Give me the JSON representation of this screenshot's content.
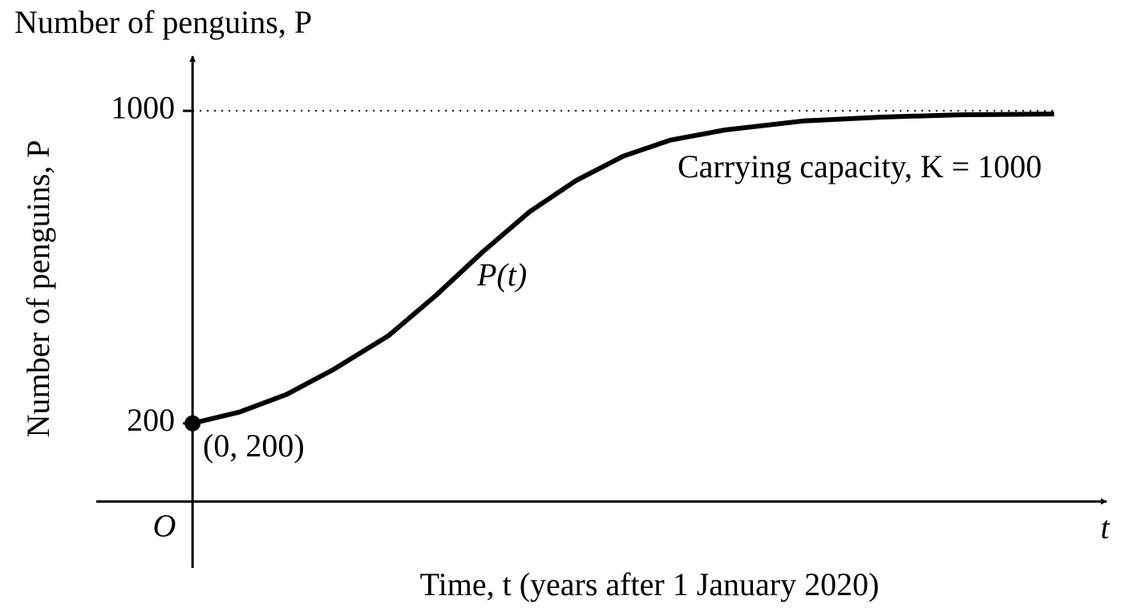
{
  "chart_data": {
    "type": "line",
    "title": "Number of penguins, P",
    "y_label": "Number of penguins, P",
    "x_label": "Time, t (years after 1 January 2020)",
    "origin_label": "O",
    "x_axis_symbol": "t",
    "annotations": {
      "start_point": "(0, 200)",
      "curve": "P(t)",
      "asymptote": "Carrying capacity, K = 1000"
    },
    "x": [
      0,
      0.6,
      1.2,
      1.8,
      2.5,
      3.1,
      3.7,
      4.3,
      4.9,
      5.5,
      6.1,
      6.8,
      7.8,
      8.8,
      9.8,
      11
    ],
    "series": [
      {
        "name": "P(t)",
        "color": "#000000",
        "values": [
          200,
          229,
          274,
          338,
          424,
          526,
          638,
          741,
          822,
          884,
          925,
          951,
          974,
          984,
          990,
          992
        ]
      }
    ],
    "asymptote": 1000,
    "xlim": [
      -1.23,
      11.67
    ],
    "ylim": [
      -170,
      1140
    ],
    "yticks": [
      200,
      1000
    ]
  }
}
